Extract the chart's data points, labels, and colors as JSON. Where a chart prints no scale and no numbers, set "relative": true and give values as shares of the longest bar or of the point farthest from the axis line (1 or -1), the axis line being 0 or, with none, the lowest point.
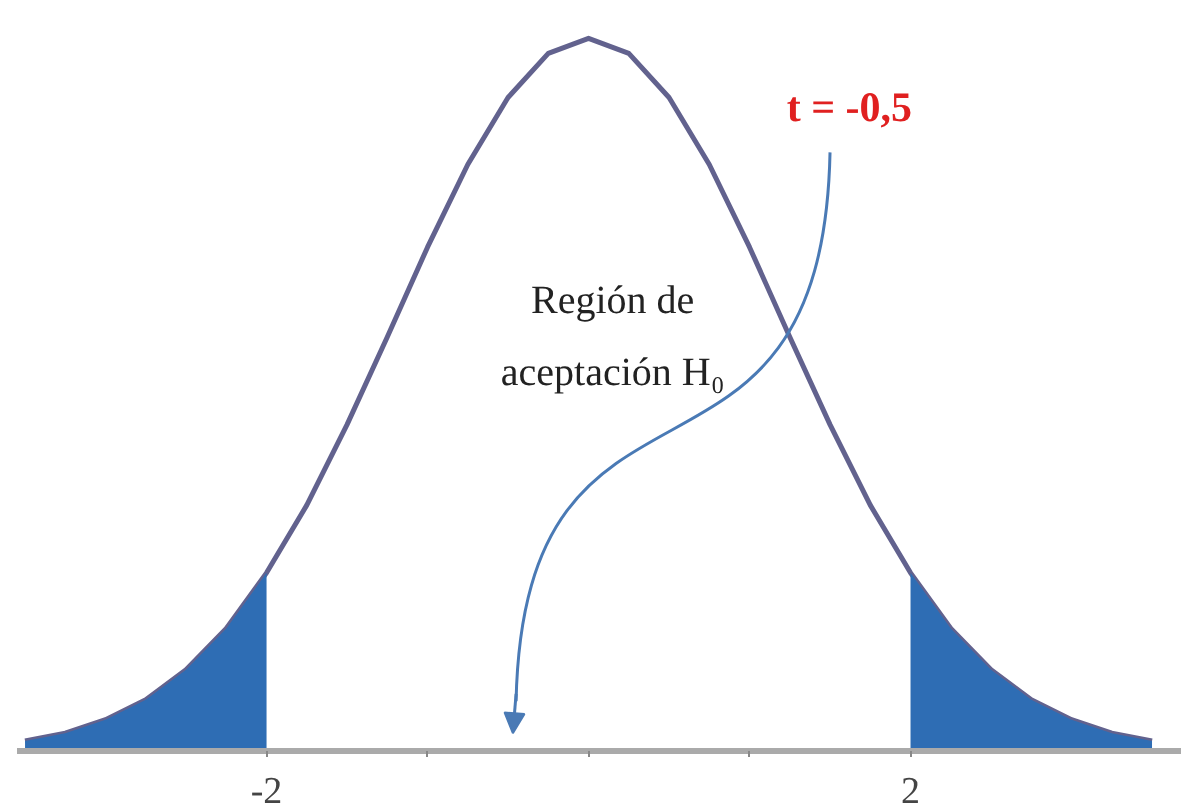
{
  "chart_data": {
    "type": "line",
    "relative": true,
    "xlim": [
      -3.55,
      3.68
    ],
    "xticks": [
      {
        "value": -2,
        "label": "-2"
      },
      {
        "value": -1,
        "label": null
      },
      {
        "value": 0,
        "label": null
      },
      {
        "value": 1,
        "label": null
      },
      {
        "value": 2,
        "label": "2"
      }
    ],
    "series": [
      {
        "color": "#62628e",
        "x": [
          -3.5,
          -3.25,
          -3,
          -2.75,
          -2.5,
          -2.25,
          -2,
          -1.75,
          -1.5,
          -1.25,
          -1,
          -0.75,
          -0.5,
          -0.25,
          0,
          0.25,
          0.5,
          0.75,
          1,
          1.25,
          1.5,
          1.75,
          2,
          2.25,
          2.5,
          2.75,
          3,
          3.25,
          3.5
        ],
        "values": [
          0.014,
          0.025,
          0.044,
          0.072,
          0.114,
          0.172,
          0.25,
          0.345,
          0.458,
          0.581,
          0.707,
          0.823,
          0.917,
          0.979,
          1,
          0.979,
          0.917,
          0.823,
          0.707,
          0.581,
          0.458,
          0.345,
          0.25,
          0.172,
          0.114,
          0.072,
          0.044,
          0.025,
          0.014
        ]
      },
      {
        "type": "area",
        "color": "#2e6db4",
        "x": [
          -3.5,
          -3.25,
          -3,
          -2.75,
          -2.5,
          -2.25,
          -2
        ],
        "values": [
          0.014,
          0.025,
          0.044,
          0.072,
          0.114,
          0.172,
          0.25
        ]
      },
      {
        "type": "area",
        "color": "#2e6db4",
        "x": [
          2,
          2.25,
          2.5,
          2.75,
          3,
          3.25,
          3.5
        ],
        "values": [
          0.25,
          0.172,
          0.114,
          0.072,
          0.044,
          0.025,
          0.014
        ]
      }
    ],
    "annotations": [
      "t = -0,5",
      "Región de aceptación H₀"
    ],
    "grid": false
  }
}
